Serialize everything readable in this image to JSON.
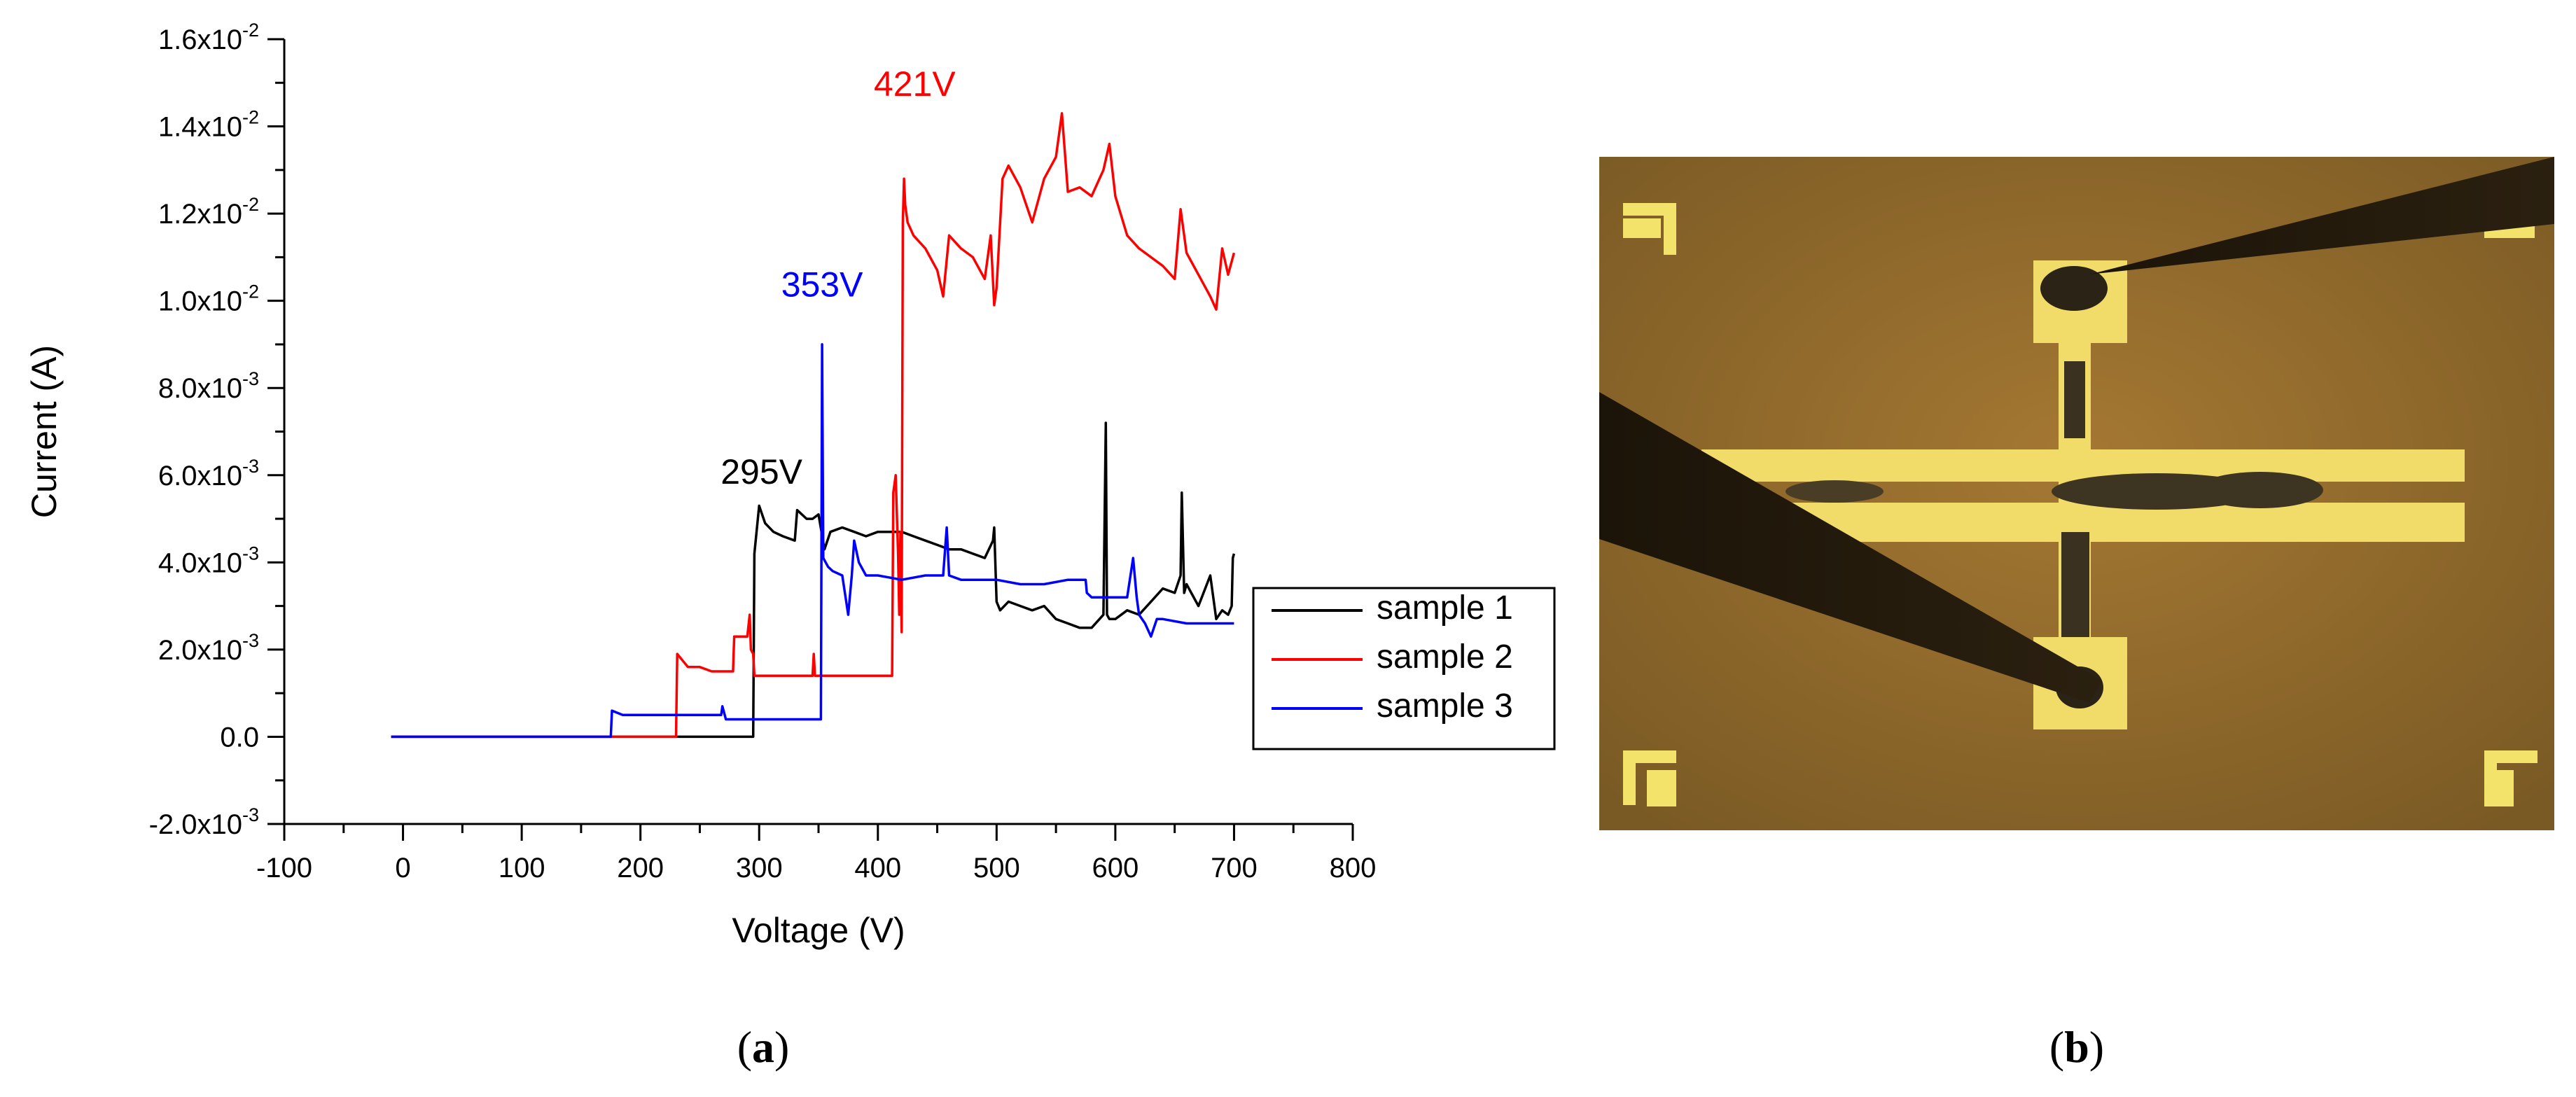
{
  "figure": {
    "panel_a_label_open": "(",
    "panel_a_label_letter": "a",
    "panel_a_label_close": ")",
    "panel_b_label_open": "(",
    "panel_b_label_letter": "b",
    "panel_b_label_close": ")"
  },
  "chart_data": {
    "type": "line",
    "title": "",
    "xlabel": "Voltage (V)",
    "ylabel": "Current (A)",
    "xlim": [
      -100,
      800
    ],
    "ylim": [
      -0.002,
      0.016
    ],
    "x_ticks": [
      -100,
      0,
      100,
      200,
      300,
      400,
      500,
      600,
      700,
      800
    ],
    "x_tick_labels": [
      "-100",
      "0",
      "100",
      "200",
      "300",
      "400",
      "500",
      "600",
      "700",
      "800"
    ],
    "y_ticks": [
      -0.002,
      0.0,
      0.002,
      0.004,
      0.006,
      0.008,
      0.01,
      0.012,
      0.014,
      0.016
    ],
    "y_tick_labels": [
      {
        "mantissa": "-2.0x10",
        "exp": "-3"
      },
      {
        "mantissa": "0.0",
        "exp": ""
      },
      {
        "mantissa": "2.0x10",
        "exp": "-3"
      },
      {
        "mantissa": "4.0x10",
        "exp": "-3"
      },
      {
        "mantissa": "6.0x10",
        "exp": "-3"
      },
      {
        "mantissa": "8.0x10",
        "exp": "-3"
      },
      {
        "mantissa": "1.0x10",
        "exp": "-2"
      },
      {
        "mantissa": "1.2x10",
        "exp": "-2"
      },
      {
        "mantissa": "1.4x10",
        "exp": "-2"
      },
      {
        "mantissa": "1.6x10",
        "exp": "-2"
      }
    ],
    "grid": false,
    "legend_position": "right",
    "series": [
      {
        "name": "sample 1",
        "color": "#000000",
        "x": [
          -10,
          295,
          296,
          300,
          305,
          312,
          320,
          330,
          332,
          340,
          345,
          350,
          355,
          360,
          370,
          380,
          390,
          400,
          410,
          420,
          430,
          440,
          450,
          460,
          470,
          480,
          490,
          497,
          498,
          500,
          503,
          510,
          520,
          530,
          540,
          550,
          560,
          570,
          580,
          590,
          592,
          593,
          595,
          600,
          610,
          620,
          630,
          640,
          650,
          655,
          656,
          658,
          660,
          670,
          680,
          685,
          690,
          695,
          698,
          699,
          700
        ],
        "y": [
          0,
          0,
          0.0042,
          0.0053,
          0.0049,
          0.0047,
          0.0046,
          0.0045,
          0.0052,
          0.005,
          0.005,
          0.0051,
          0.0043,
          0.0047,
          0.0048,
          0.0047,
          0.0046,
          0.0047,
          0.0047,
          0.0047,
          0.0046,
          0.0045,
          0.0044,
          0.0043,
          0.0043,
          0.0042,
          0.0041,
          0.0045,
          0.0048,
          0.0031,
          0.0029,
          0.0031,
          0.003,
          0.0029,
          0.003,
          0.0027,
          0.0026,
          0.0025,
          0.0025,
          0.0028,
          0.0072,
          0.0028,
          0.0027,
          0.0027,
          0.0029,
          0.0028,
          0.0031,
          0.0034,
          0.0033,
          0.0037,
          0.0056,
          0.0033,
          0.0035,
          0.003,
          0.0037,
          0.0027,
          0.0029,
          0.0028,
          0.003,
          0.0041,
          0.0042
        ]
      },
      {
        "name": "sample 2",
        "color": "#ff0000",
        "x": [
          -10,
          230,
          231,
          240,
          250,
          260,
          270,
          278,
          279,
          285,
          290,
          292,
          293,
          295,
          296,
          300,
          320,
          340,
          345,
          346,
          347,
          350,
          380,
          412,
          413,
          415,
          417,
          418,
          419,
          420,
          421,
          422,
          423,
          425,
          430,
          440,
          450,
          455,
          460,
          470,
          480,
          490,
          495,
          498,
          500,
          505,
          510,
          520,
          530,
          540,
          550,
          555,
          560,
          570,
          580,
          590,
          595,
          600,
          610,
          620,
          630,
          640,
          650,
          655,
          660,
          670,
          680,
          685,
          690,
          695,
          700
        ],
        "y": [
          0,
          0,
          0.0019,
          0.0016,
          0.0016,
          0.0015,
          0.0015,
          0.0015,
          0.0023,
          0.0023,
          0.0023,
          0.0028,
          0.002,
          0.0019,
          0.0014,
          0.0014,
          0.0014,
          0.0014,
          0.0014,
          0.0019,
          0.0014,
          0.0014,
          0.0014,
          0.0014,
          0.0056,
          0.006,
          0.0042,
          0.0028,
          0.0047,
          0.0024,
          0.0118,
          0.0128,
          0.0122,
          0.0118,
          0.0115,
          0.0112,
          0.0107,
          0.0101,
          0.0115,
          0.0112,
          0.011,
          0.0105,
          0.0115,
          0.0099,
          0.0103,
          0.0128,
          0.0131,
          0.0126,
          0.0118,
          0.0128,
          0.0133,
          0.0143,
          0.0125,
          0.0126,
          0.0124,
          0.013,
          0.0136,
          0.0124,
          0.0115,
          0.0112,
          0.011,
          0.0108,
          0.0105,
          0.0121,
          0.0111,
          0.0106,
          0.0101,
          0.0098,
          0.0112,
          0.0106,
          0.0111
        ]
      },
      {
        "name": "sample 3",
        "color": "#0000ff",
        "x": [
          -10,
          175,
          176,
          185,
          200,
          220,
          240,
          260,
          268,
          269,
          272,
          275,
          290,
          310,
          330,
          352,
          353,
          354,
          356,
          358,
          362,
          370,
          375,
          378,
          380,
          384,
          390,
          400,
          420,
          440,
          455,
          458,
          460,
          470,
          480,
          490,
          500,
          520,
          540,
          560,
          575,
          576,
          580,
          590,
          600,
          610,
          615,
          618,
          620,
          625,
          630,
          635,
          640,
          660,
          680,
          700
        ],
        "y": [
          0,
          0,
          0.0006,
          0.0005,
          0.0005,
          0.0005,
          0.0005,
          0.0005,
          0.0005,
          0.0007,
          0.0004,
          0.0004,
          0.0004,
          0.0004,
          0.0004,
          0.0004,
          0.009,
          0.0041,
          0.004,
          0.0039,
          0.0038,
          0.0037,
          0.0028,
          0.0037,
          0.0045,
          0.004,
          0.0037,
          0.0037,
          0.0036,
          0.0037,
          0.0037,
          0.0048,
          0.0037,
          0.0036,
          0.0036,
          0.0036,
          0.0036,
          0.0035,
          0.0035,
          0.0036,
          0.0036,
          0.0033,
          0.0032,
          0.0032,
          0.0032,
          0.0032,
          0.0041,
          0.0032,
          0.0028,
          0.0026,
          0.0023,
          0.0027,
          0.0027,
          0.0026,
          0.0026,
          0.0026
        ]
      }
    ],
    "annotations": [
      {
        "text": "295V",
        "x": 302,
        "y": 0.0058,
        "color": "#000000"
      },
      {
        "text": "353V",
        "x": 353,
        "y": 0.0101,
        "color": "#0000ff"
      },
      {
        "text": "421V",
        "x": 431,
        "y": 0.0147,
        "color": "#ff0000"
      }
    ]
  }
}
